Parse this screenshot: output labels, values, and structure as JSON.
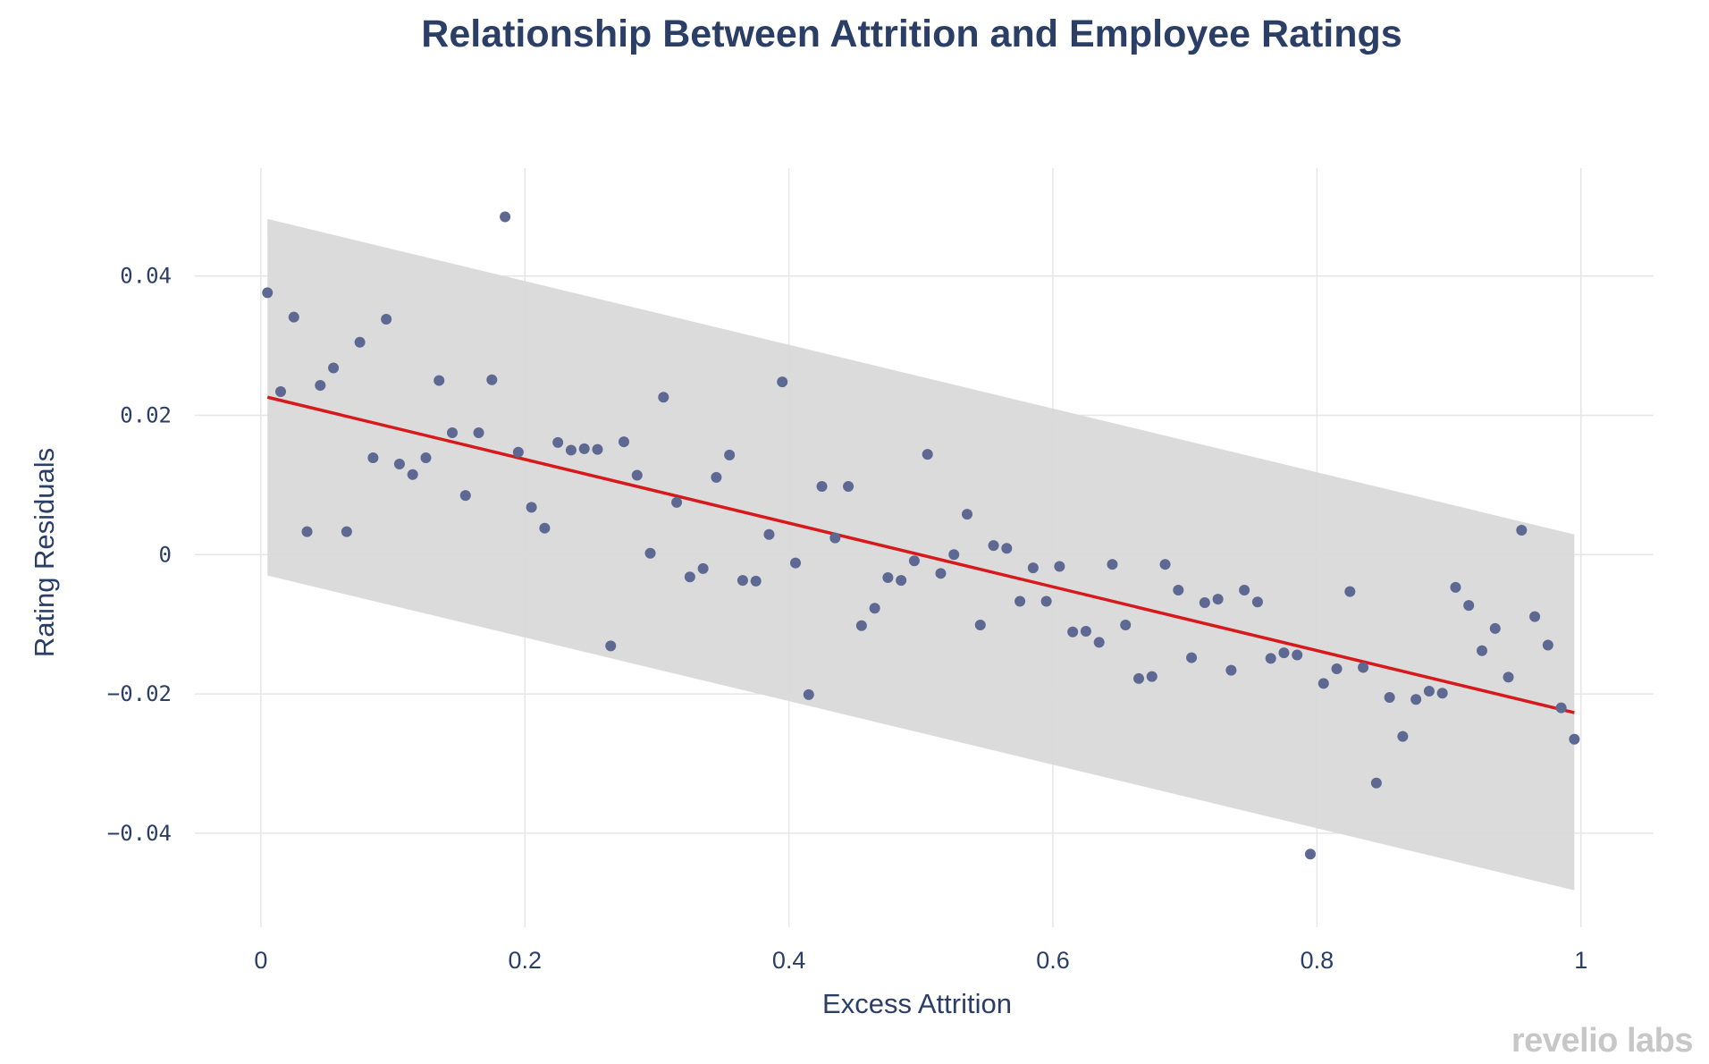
{
  "chart_data": {
    "type": "scatter",
    "title": "Relationship Between Attrition and Employee Ratings",
    "xlabel": "Excess Attrition",
    "ylabel": "Rating Residuals",
    "xlim": [
      -0.05,
      1.055
    ],
    "ylim": [
      -0.0535,
      0.0555
    ],
    "x_ticks": [
      0,
      0.2,
      0.4,
      0.6,
      0.8,
      1
    ],
    "x_tick_labels": [
      "0",
      "0.2",
      "0.4",
      "0.6",
      "0.8",
      "1"
    ],
    "y_ticks": [
      -0.04,
      -0.02,
      0,
      0.02,
      0.04
    ],
    "y_tick_labels": [
      "−0.04",
      "−0.02",
      "0",
      "0.02",
      "0.04"
    ],
    "grid": true,
    "colors": {
      "points": "#5d6893",
      "fit_line": "#d7191c",
      "band": "#d9d9d9",
      "grid": "#e6e6e6",
      "text": "#2b3e66"
    },
    "fit_line": {
      "x": [
        0.005,
        0.995
      ],
      "y": [
        0.0226,
        -0.0227
      ]
    },
    "confidence_band": {
      "x": [
        0.005,
        0.995
      ],
      "upper": [
        0.0482,
        0.0029
      ],
      "lower": [
        -0.003,
        -0.0482
      ]
    },
    "series": [
      {
        "name": "points",
        "x": [
          0.005,
          0.015,
          0.025,
          0.035,
          0.045,
          0.055,
          0.065,
          0.075,
          0.085,
          0.095,
          0.105,
          0.115,
          0.125,
          0.135,
          0.145,
          0.155,
          0.165,
          0.175,
          0.185,
          0.195,
          0.205,
          0.215,
          0.225,
          0.235,
          0.245,
          0.255,
          0.265,
          0.275,
          0.285,
          0.295,
          0.305,
          0.315,
          0.325,
          0.335,
          0.345,
          0.355,
          0.365,
          0.375,
          0.385,
          0.395,
          0.405,
          0.415,
          0.425,
          0.435,
          0.445,
          0.455,
          0.465,
          0.475,
          0.485,
          0.495,
          0.505,
          0.515,
          0.525,
          0.535,
          0.545,
          0.555,
          0.565,
          0.575,
          0.585,
          0.595,
          0.605,
          0.615,
          0.625,
          0.635,
          0.645,
          0.655,
          0.665,
          0.675,
          0.685,
          0.695,
          0.705,
          0.715,
          0.725,
          0.735,
          0.745,
          0.755,
          0.765,
          0.775,
          0.785,
          0.795,
          0.805,
          0.815,
          0.825,
          0.835,
          0.845,
          0.855,
          0.865,
          0.875,
          0.885,
          0.895,
          0.905,
          0.915,
          0.925,
          0.935,
          0.945,
          0.955,
          0.965,
          0.975,
          0.985,
          0.995
        ],
        "y": [
          0.0376,
          0.0234,
          0.0341,
          0.0033,
          0.0243,
          0.0268,
          0.0033,
          0.0305,
          0.0139,
          0.0338,
          0.013,
          0.0115,
          0.0139,
          0.025,
          0.0175,
          0.0085,
          0.0175,
          0.0251,
          0.0485,
          0.0147,
          0.0068,
          0.0038,
          0.0161,
          0.015,
          0.0152,
          0.0151,
          -0.0131,
          0.0162,
          0.0114,
          0.0002,
          0.0226,
          0.0075,
          -0.0032,
          -0.002,
          0.0111,
          0.0143,
          -0.0037,
          -0.0038,
          0.0029,
          0.0248,
          -0.0012,
          -0.0201,
          0.0098,
          0.0024,
          0.0098,
          -0.0102,
          -0.0077,
          -0.0033,
          -0.0037,
          -0.0009,
          0.0144,
          -0.0027,
          0.0,
          0.0058,
          -0.0101,
          0.0013,
          0.0009,
          -0.0067,
          -0.0019,
          -0.0067,
          -0.0017,
          -0.0111,
          -0.011,
          -0.0126,
          -0.0014,
          -0.0101,
          -0.0178,
          -0.0175,
          -0.0014,
          -0.0051,
          -0.0148,
          -0.0069,
          -0.0064,
          -0.0166,
          -0.0051,
          -0.0068,
          -0.0149,
          -0.0141,
          -0.0144,
          -0.043,
          -0.0185,
          -0.0164,
          -0.0053,
          -0.0162,
          -0.0328,
          -0.0205,
          -0.0261,
          -0.0208,
          -0.0196,
          -0.0199,
          -0.0047,
          -0.0073,
          -0.0138,
          -0.0106,
          -0.0176,
          0.0035,
          -0.0089,
          -0.013,
          -0.022,
          -0.0265
        ]
      }
    ]
  },
  "watermark": {
    "left": "revelio",
    "right": "labs"
  }
}
